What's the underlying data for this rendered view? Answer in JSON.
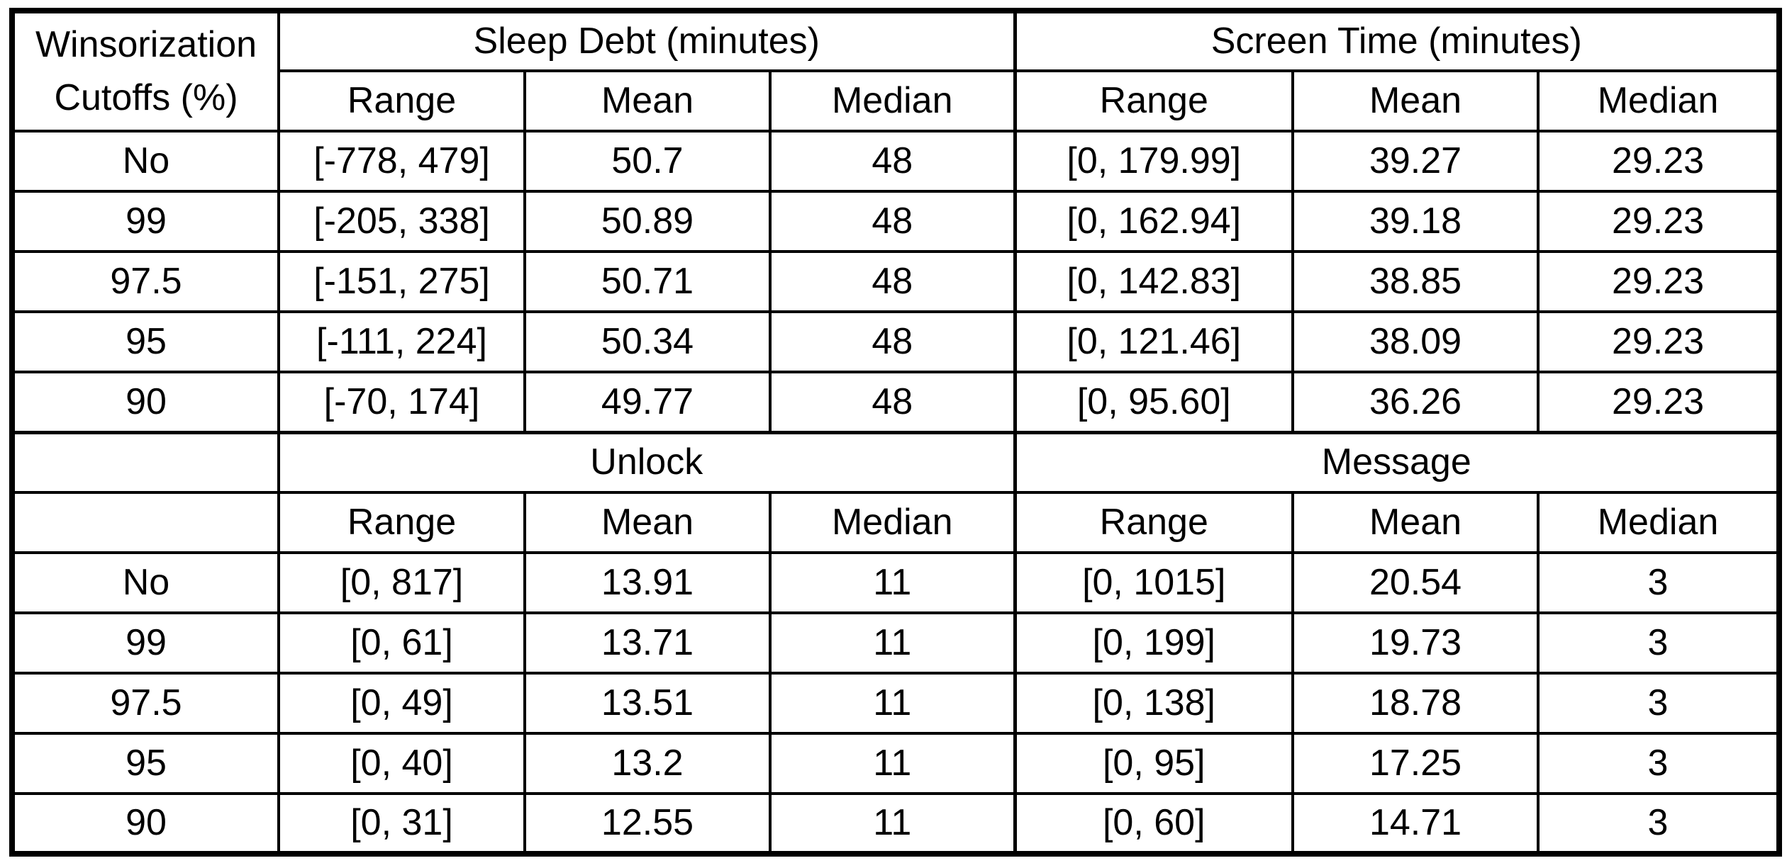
{
  "table": {
    "header_top": {
      "cutoff_label_line1": "Winsorization",
      "cutoff_label_line2": "Cutoffs (%)",
      "group1": "Sleep Debt (minutes)",
      "group2": "Screen Time (minutes)"
    },
    "subheaders": [
      "Range",
      "Mean",
      "Median",
      "Range",
      "Mean",
      "Median"
    ],
    "section1_rows": [
      [
        "No",
        "[-778, 479]",
        "50.7",
        "48",
        "[0, 179.99]",
        "39.27",
        "29.23"
      ],
      [
        "99",
        "[-205, 338]",
        "50.89",
        "48",
        "[0, 162.94]",
        "39.18",
        "29.23"
      ],
      [
        "97.5",
        "[-151, 275]",
        "50.71",
        "48",
        "[0, 142.83]",
        "38.85",
        "29.23"
      ],
      [
        "95",
        "[-111, 224]",
        "50.34",
        "48",
        "[0, 121.46]",
        "38.09",
        "29.23"
      ],
      [
        "90",
        "[-70, 174]",
        "49.77",
        "48",
        "[0, 95.60]",
        "36.26",
        "29.23"
      ]
    ],
    "section2_header": {
      "group1": "Unlock",
      "group2": "Message"
    },
    "section2_subheaders": [
      "Range",
      "Mean",
      "Median",
      "Range",
      "Mean",
      "Median"
    ],
    "section2_rows": [
      [
        "No",
        "[0, 817]",
        "13.91",
        "11",
        "[0, 1015]",
        "20.54",
        "3"
      ],
      [
        "99",
        "[0, 61]",
        "13.71",
        "11",
        "[0, 199]",
        "19.73",
        "3"
      ],
      [
        "97.5",
        "[0, 49]",
        "13.51",
        "11",
        "[0, 138]",
        "18.78",
        "3"
      ],
      [
        "95",
        "[0, 40]",
        "13.2",
        "11",
        "[0, 95]",
        "17.25",
        "3"
      ],
      [
        "90",
        "[0, 31]",
        "12.55",
        "11",
        "[0, 60]",
        "14.71",
        "3"
      ]
    ]
  }
}
